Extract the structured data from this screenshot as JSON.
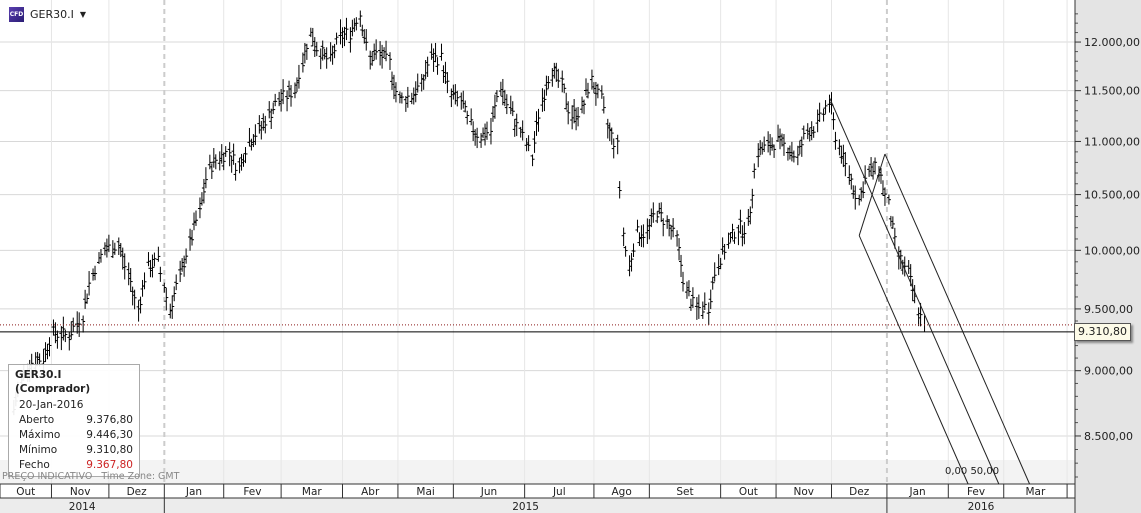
{
  "header": {
    "symbol": "GER30.I",
    "logo_text": "CFD"
  },
  "info_box": {
    "title": "GER30.I (Comprador)",
    "date": "20-Jan-2016",
    "rows": [
      {
        "label": "Aberto",
        "value": "9.376,80"
      },
      {
        "label": "Máximo",
        "value": "9.446,30"
      },
      {
        "label": "Mínimo",
        "value": "9.310,80"
      },
      {
        "label": "Fecho",
        "value": "9.367,80"
      }
    ]
  },
  "footer": {
    "price_note": "PREÇO INDICATIVO",
    "timezone": "Time Zone: GMT"
  },
  "price_tag": "9.310,80",
  "fib_labels": "0,00 50,00",
  "colors": {
    "bars": "#000000",
    "close_line": "#8b1a1a",
    "fecho_value": "#cc2222",
    "axis_panel": "#e4e4e4"
  },
  "chart_data": {
    "type": "ohlc-bar",
    "y_scale": "log",
    "ylim": [
      8150,
      12450
    ],
    "y_ticks": [
      {
        "v": 12000,
        "label": "12.000,00"
      },
      {
        "v": 11500,
        "label": "11.500,00"
      },
      {
        "v": 11000,
        "label": "11.000,00"
      },
      {
        "v": 10500,
        "label": "10.500,00"
      },
      {
        "v": 10000,
        "label": "10.000,00"
      },
      {
        "v": 9500,
        "label": "9.500,00"
      },
      {
        "v": 9000,
        "label": "9.000,00"
      },
      {
        "v": 8500,
        "label": "8.500,00"
      }
    ],
    "xlim": [
      "2014-10-10",
      "2016-04-05"
    ],
    "months": [
      {
        "start": "2014-10-10",
        "label": "Out"
      },
      {
        "start": "2014-11-05",
        "label": "Nov"
      },
      {
        "start": "2014-12-04",
        "label": "Dez"
      },
      {
        "start": "2015-01-01",
        "label": "Jan"
      },
      {
        "start": "2015-01-31",
        "label": "Fev"
      },
      {
        "start": "2015-03-01",
        "label": "Mar"
      },
      {
        "start": "2015-04-01",
        "label": "Abr"
      },
      {
        "start": "2015-04-29",
        "label": "Mai"
      },
      {
        "start": "2015-05-27",
        "label": "Jun"
      },
      {
        "start": "2015-07-02",
        "label": "Jul"
      },
      {
        "start": "2015-08-06",
        "label": "Ago"
      },
      {
        "start": "2015-09-03",
        "label": "Set"
      },
      {
        "start": "2015-10-09",
        "label": "Out"
      },
      {
        "start": "2015-11-06",
        "label": "Nov"
      },
      {
        "start": "2015-12-04",
        "label": "Dez"
      },
      {
        "start": "2016-01-01",
        "label": "Jan"
      },
      {
        "start": "2016-02-01",
        "label": "Fev"
      },
      {
        "start": "2016-02-29",
        "label": "Mar"
      },
      {
        "start": "2016-04-01",
        "label": ""
      }
    ],
    "years": [
      {
        "start": "2014-10-10",
        "end": "2015-01-01",
        "label": "2014"
      },
      {
        "start": "2015-01-01",
        "end": "2016-01-01",
        "label": "2015"
      },
      {
        "start": "2016-01-01",
        "end": "2016-04-05",
        "label": "2016"
      }
    ],
    "closes": [
      [
        "2014-10-17",
        8700
      ],
      [
        "2014-10-24",
        9050
      ],
      [
        "2014-11-01",
        9100
      ],
      [
        "2014-11-06",
        9300
      ],
      [
        "2014-11-14",
        9280
      ],
      [
        "2014-11-21",
        9450
      ],
      [
        "2014-11-26",
        9800
      ],
      [
        "2014-12-02",
        10000
      ],
      [
        "2014-12-09",
        10050
      ],
      [
        "2014-12-14",
        9800
      ],
      [
        "2014-12-19",
        9500
      ],
      [
        "2014-12-24",
        9850
      ],
      [
        "2014-12-29",
        9900
      ],
      [
        "2015-01-04",
        9500
      ],
      [
        "2015-01-09",
        9750
      ],
      [
        "2015-01-14",
        10050
      ],
      [
        "2015-01-19",
        10330
      ],
      [
        "2015-01-24",
        10750
      ],
      [
        "2015-01-29",
        10850
      ],
      [
        "2015-02-03",
        10900
      ],
      [
        "2015-02-08",
        10750
      ],
      [
        "2015-02-13",
        11000
      ],
      [
        "2015-02-18",
        11100
      ],
      [
        "2015-02-23",
        11250
      ],
      [
        "2015-02-28",
        11400
      ],
      [
        "2015-03-08",
        11500
      ],
      [
        "2015-03-16",
        12080
      ],
      [
        "2015-03-21",
        11900
      ],
      [
        "2015-03-26",
        11800
      ],
      [
        "2015-03-31",
        12050
      ],
      [
        "2015-04-05",
        12100
      ],
      [
        "2015-04-10",
        12300
      ],
      [
        "2015-04-15",
        11830
      ],
      [
        "2015-04-20",
        11880
      ],
      [
        "2015-04-25",
        11780
      ],
      [
        "2015-04-30",
        11400
      ],
      [
        "2015-05-06",
        11450
      ],
      [
        "2015-05-11",
        11550
      ],
      [
        "2015-05-16",
        11830
      ],
      [
        "2015-05-21",
        11830
      ],
      [
        "2015-05-26",
        11450
      ],
      [
        "2015-05-31",
        11400
      ],
      [
        "2015-06-05",
        11150
      ],
      [
        "2015-06-10",
        11050
      ],
      [
        "2015-06-15",
        11100
      ],
      [
        "2015-06-20",
        11550
      ],
      [
        "2015-06-25",
        11300
      ],
      [
        "2015-06-30",
        11100
      ],
      [
        "2015-07-06",
        10850
      ],
      [
        "2015-07-11",
        11400
      ],
      [
        "2015-07-16",
        11720
      ],
      [
        "2015-07-21",
        11550
      ],
      [
        "2015-07-26",
        11250
      ],
      [
        "2015-07-31",
        11300
      ],
      [
        "2015-08-05",
        11600
      ],
      [
        "2015-08-10",
        11400
      ],
      [
        "2015-08-13",
        11150
      ],
      [
        "2015-08-18",
        10950
      ],
      [
        "2015-08-21",
        10150
      ],
      [
        "2015-08-24",
        9850
      ],
      [
        "2015-08-28",
        10150
      ],
      [
        "2015-09-02",
        10150
      ],
      [
        "2015-09-07",
        10350
      ],
      [
        "2015-09-12",
        10250
      ],
      [
        "2015-09-17",
        10100
      ],
      [
        "2015-09-22",
        9650
      ],
      [
        "2015-09-27",
        9500
      ],
      [
        "2015-10-03",
        9520
      ],
      [
        "2015-10-08",
        9900
      ],
      [
        "2015-10-13",
        10050
      ],
      [
        "2015-10-18",
        10200
      ],
      [
        "2015-10-23",
        10200
      ],
      [
        "2015-10-28",
        10900
      ],
      [
        "2015-11-02",
        10950
      ],
      [
        "2015-11-07",
        11000
      ],
      [
        "2015-11-12",
        10950
      ],
      [
        "2015-11-17",
        10850
      ],
      [
        "2015-11-22",
        11100
      ],
      [
        "2015-11-27",
        11150
      ],
      [
        "2015-12-03",
        11400
      ],
      [
        "2015-12-08",
        10950
      ],
      [
        "2015-12-13",
        10700
      ],
      [
        "2015-12-18",
        10450
      ],
      [
        "2015-12-23",
        10700
      ],
      [
        "2015-12-28",
        10750
      ],
      [
        "2016-01-02",
        10400
      ],
      [
        "2016-01-07",
        9950
      ],
      [
        "2016-01-12",
        9800
      ],
      [
        "2016-01-17",
        9500
      ],
      [
        "2016-01-20",
        9367.8
      ]
    ],
    "last_low": 9310.8,
    "last_close": 9367.8,
    "pitchfork": [
      [
        "2015-12-03",
        11430
      ],
      [
        "2015-12-18",
        10130
      ],
      [
        "2015-12-31",
        10880
      ]
    ],
    "grid": true
  }
}
